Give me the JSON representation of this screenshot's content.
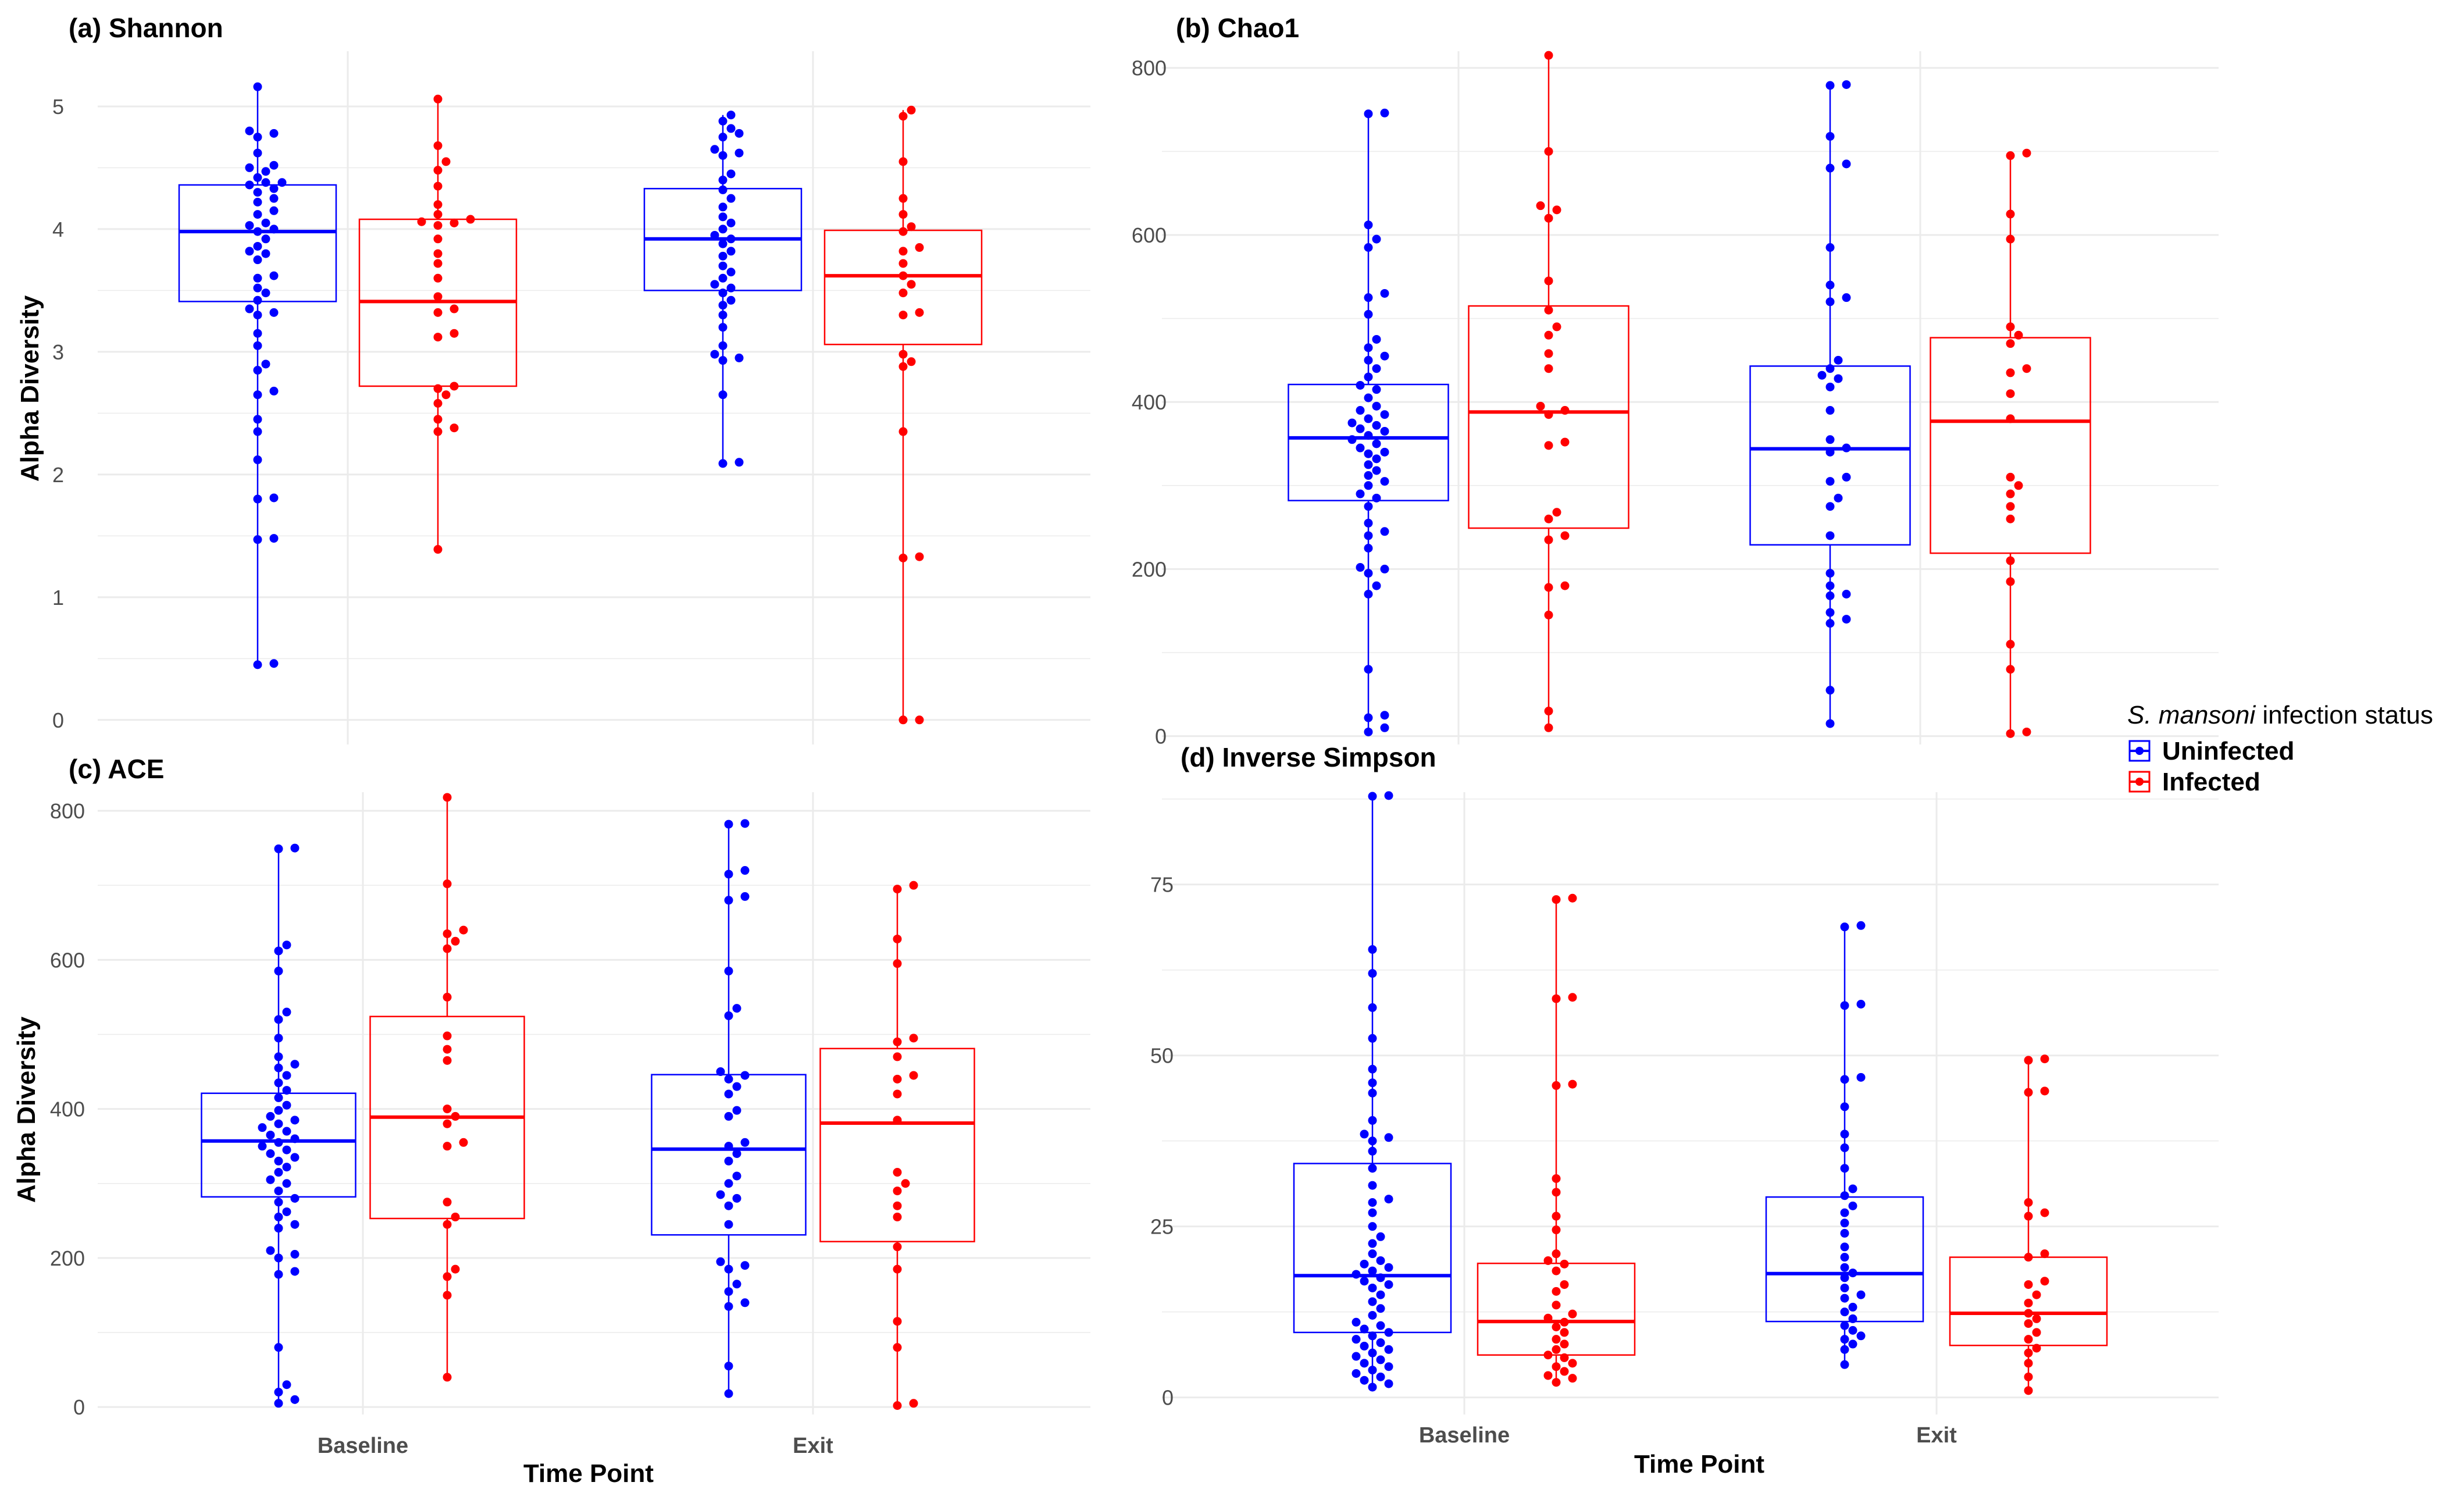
{
  "colors": {
    "uninfected": "#0000ff",
    "infected": "#ff0000",
    "grid": "#ebebeb"
  },
  "legend": {
    "title_italic": "S. mansoni",
    "title_rest": " infection status",
    "items": [
      {
        "label": "Uninfected",
        "color": "#0000ff"
      },
      {
        "label": "Infected",
        "color": "#ff0000"
      }
    ]
  },
  "chart_data": [
    {
      "type": "box",
      "title": "(a) Shannon",
      "ylabel": "Alpha Diversity",
      "xlabel": "",
      "categories": [
        "Baseline",
        "Exit"
      ],
      "show_x_ticks": false,
      "ylim": [
        -0.2,
        5.45
      ],
      "yticks": [
        0,
        1,
        2,
        3,
        4,
        5
      ],
      "yminor": [
        0.5,
        1.5,
        2.5,
        3.5,
        4.5
      ],
      "groups": [
        {
          "category": "Baseline",
          "status": "Uninfected",
          "q1": 3.41,
          "median": 3.98,
          "q3": 4.36,
          "wlo": 0.45,
          "whi": 5.16,
          "points": [
            5.16,
            4.8,
            4.78,
            4.75,
            4.62,
            4.52,
            4.5,
            4.47,
            4.42,
            4.38,
            4.38,
            4.36,
            4.33,
            4.3,
            4.25,
            4.22,
            4.15,
            4.12,
            4.05,
            4.03,
            4.0,
            3.98,
            3.92,
            3.86,
            3.82,
            3.8,
            3.75,
            3.62,
            3.6,
            3.52,
            3.48,
            3.42,
            3.35,
            3.32,
            3.3,
            3.15,
            3.05,
            2.9,
            2.85,
            2.68,
            2.65,
            2.45,
            2.35,
            2.12,
            1.81,
            1.8,
            1.48,
            1.47,
            0.46,
            0.45
          ]
        },
        {
          "category": "Baseline",
          "status": "Infected",
          "q1": 2.72,
          "median": 3.41,
          "q3": 4.08,
          "wlo": 1.39,
          "whi": 5.06,
          "points": [
            5.06,
            4.68,
            4.55,
            4.48,
            4.35,
            4.2,
            4.12,
            4.08,
            4.06,
            4.05,
            4.03,
            3.92,
            3.8,
            3.72,
            3.6,
            3.45,
            3.35,
            3.32,
            3.15,
            3.12,
            2.72,
            2.7,
            2.65,
            2.58,
            2.45,
            2.38,
            2.35,
            1.39
          ]
        },
        {
          "category": "Exit",
          "status": "Uninfected",
          "q1": 3.5,
          "median": 3.92,
          "q3": 4.33,
          "wlo": 2.1,
          "whi": 4.93,
          "points": [
            4.93,
            4.88,
            4.82,
            4.78,
            4.75,
            4.65,
            4.62,
            4.6,
            4.45,
            4.4,
            4.32,
            4.25,
            4.18,
            4.1,
            4.05,
            4.0,
            3.95,
            3.92,
            3.88,
            3.82,
            3.78,
            3.7,
            3.65,
            3.6,
            3.55,
            3.52,
            3.48,
            3.42,
            3.38,
            3.3,
            3.2,
            3.05,
            2.98,
            2.95,
            2.93,
            2.65,
            2.1,
            2.09
          ]
        },
        {
          "category": "Exit",
          "status": "Infected",
          "q1": 3.06,
          "median": 3.62,
          "q3": 3.99,
          "wlo": 0.0,
          "whi": 4.97,
          "points": [
            4.97,
            4.92,
            4.55,
            4.25,
            4.12,
            4.02,
            3.98,
            3.85,
            3.82,
            3.72,
            3.62,
            3.55,
            3.48,
            3.32,
            3.3,
            2.98,
            2.92,
            2.88,
            2.35,
            1.33,
            1.32,
            0.0,
            0.0
          ]
        }
      ]
    },
    {
      "type": "box",
      "title": "(b) Chao1",
      "ylabel": "",
      "xlabel": "",
      "categories": [
        "Baseline",
        "Exit"
      ],
      "show_x_ticks": false,
      "ylim": [
        -10,
        820
      ],
      "yticks": [
        0,
        200,
        400,
        600,
        800
      ],
      "yminor": [
        100,
        300,
        500,
        700
      ],
      "groups": [
        {
          "category": "Baseline",
          "status": "Uninfected",
          "q1": 282,
          "median": 357,
          "q3": 421,
          "wlo": 5,
          "whi": 746,
          "points": [
            746,
            745,
            612,
            595,
            585,
            530,
            525,
            505,
            475,
            465,
            455,
            450,
            440,
            430,
            420,
            415,
            405,
            395,
            390,
            385,
            380,
            375,
            372,
            368,
            365,
            360,
            355,
            350,
            345,
            340,
            338,
            332,
            325,
            318,
            312,
            305,
            300,
            290,
            285,
            275,
            255,
            245,
            240,
            225,
            202,
            200,
            195,
            180,
            170,
            80,
            25,
            22,
            10,
            5
          ]
        },
        {
          "category": "Baseline",
          "status": "Infected",
          "q1": 249,
          "median": 388,
          "q3": 515,
          "wlo": 10,
          "whi": 815,
          "points": [
            815,
            700,
            635,
            630,
            620,
            545,
            510,
            490,
            480,
            458,
            440,
            395,
            390,
            385,
            352,
            348,
            268,
            260,
            240,
            235,
            180,
            178,
            145,
            30,
            10
          ]
        },
        {
          "category": "Exit",
          "status": "Uninfected",
          "q1": 229,
          "median": 344,
          "q3": 443,
          "wlo": 15,
          "whi": 780,
          "points": [
            780,
            779,
            718,
            685,
            680,
            585,
            540,
            525,
            520,
            450,
            440,
            432,
            428,
            418,
            390,
            355,
            345,
            340,
            310,
            305,
            285,
            275,
            240,
            195,
            180,
            170,
            168,
            148,
            140,
            135,
            55,
            15
          ]
        },
        {
          "category": "Exit",
          "status": "Infected",
          "q1": 219,
          "median": 377,
          "q3": 477,
          "wlo": 0,
          "whi": 698,
          "points": [
            698,
            695,
            625,
            595,
            490,
            480,
            470,
            440,
            435,
            410,
            380,
            310,
            300,
            290,
            275,
            260,
            210,
            185,
            110,
            80,
            5,
            3
          ]
        }
      ]
    },
    {
      "type": "box",
      "title": "(c) ACE",
      "ylabel": "Alpha Diversity",
      "xlabel": "Time Point",
      "categories": [
        "Baseline",
        "Exit"
      ],
      "show_x_ticks": true,
      "ylim": [
        -10,
        825
      ],
      "yticks": [
        0,
        200,
        400,
        600,
        800
      ],
      "yminor": [
        100,
        300,
        500,
        700
      ],
      "groups": [
        {
          "category": "Baseline",
          "status": "Uninfected",
          "q1": 282,
          "median": 357,
          "q3": 421,
          "wlo": 5,
          "whi": 750,
          "points": [
            750,
            749,
            620,
            612,
            585,
            530,
            520,
            495,
            470,
            460,
            455,
            445,
            435,
            425,
            415,
            405,
            398,
            390,
            385,
            380,
            375,
            370,
            365,
            360,
            355,
            350,
            345,
            340,
            335,
            330,
            322,
            315,
            305,
            300,
            290,
            280,
            275,
            262,
            255,
            245,
            240,
            210,
            205,
            200,
            182,
            178,
            80,
            30,
            20,
            10,
            5
          ]
        },
        {
          "category": "Baseline",
          "status": "Infected",
          "q1": 253,
          "median": 389,
          "q3": 524,
          "wlo": 40,
          "whi": 818,
          "points": [
            818,
            702,
            640,
            635,
            625,
            615,
            550,
            498,
            480,
            465,
            400,
            390,
            380,
            355,
            350,
            275,
            255,
            245,
            185,
            175,
            150,
            40
          ]
        },
        {
          "category": "Exit",
          "status": "Uninfected",
          "q1": 231,
          "median": 346,
          "q3": 446,
          "wlo": 18,
          "whi": 783,
          "points": [
            783,
            782,
            720,
            715,
            685,
            680,
            585,
            535,
            525,
            450,
            445,
            440,
            430,
            420,
            398,
            390,
            355,
            350,
            340,
            330,
            310,
            300,
            285,
            280,
            270,
            245,
            195,
            190,
            185,
            165,
            155,
            140,
            135,
            55,
            18
          ]
        },
        {
          "category": "Exit",
          "status": "Infected",
          "q1": 222,
          "median": 381,
          "q3": 481,
          "wlo": 2,
          "whi": 700,
          "points": [
            700,
            695,
            628,
            595,
            495,
            490,
            470,
            445,
            440,
            420,
            385,
            315,
            300,
            290,
            270,
            255,
            215,
            185,
            115,
            80,
            5,
            2
          ]
        }
      ]
    },
    {
      "type": "box",
      "title": "(d) Inverse Simpson",
      "ylabel": "",
      "xlabel": "Time Point",
      "categories": [
        "Baseline",
        "Exit"
      ],
      "show_x_ticks": true,
      "ylim": [
        -2.5,
        88.5
      ],
      "yticks": [
        0,
        25,
        50,
        75
      ],
      "yminor": [
        12.5,
        37.5,
        62.5,
        87.5
      ],
      "groups": [
        {
          "category": "Baseline",
          "status": "Uninfected",
          "q1": 9.5,
          "median": 17.8,
          "q3": 34.2,
          "wlo": 1.5,
          "whi": 88,
          "points": [
            88,
            87.9,
            65.5,
            62,
            57,
            52.5,
            48,
            46,
            44.5,
            40.5,
            38.5,
            38,
            37.5,
            36,
            33.5,
            31,
            29,
            28.5,
            27,
            25,
            23.5,
            22.5,
            21,
            20,
            19.5,
            19,
            18.5,
            18,
            17.5,
            17,
            16.5,
            16,
            15,
            14,
            13,
            12,
            11,
            10.5,
            10,
            9.5,
            9,
            8.5,
            8,
            7.5,
            7,
            6.5,
            6,
            5.5,
            5,
            4.5,
            4,
            3.5,
            3,
            2.5,
            2,
            1.5
          ]
        },
        {
          "category": "Baseline",
          "status": "Infected",
          "q1": 6.2,
          "median": 11.1,
          "q3": 19.6,
          "wlo": 2.2,
          "whi": 73,
          "points": [
            73,
            72.8,
            58.5,
            58.3,
            45.8,
            45.6,
            32,
            30,
            26.5,
            24.5,
            21,
            20,
            19.5,
            18.5,
            16.5,
            15.5,
            13.5,
            12.2,
            11.6,
            11,
            10.3,
            9.5,
            8.5,
            7.8,
            7,
            6.2,
            5.8,
            5,
            4.5,
            3.8,
            3.2,
            2.8,
            2.2
          ]
        },
        {
          "category": "Exit",
          "status": "Uninfected",
          "q1": 11.1,
          "median": 18.1,
          "q3": 29.3,
          "wlo": 4.8,
          "whi": 69,
          "points": [
            69,
            68.8,
            57.5,
            57.3,
            46.8,
            46.5,
            42.5,
            38.5,
            36.5,
            33.5,
            30.5,
            29.5,
            28,
            27,
            25.5,
            24,
            22,
            20.5,
            19,
            18.2,
            17.5,
            16,
            15,
            14.5,
            13.2,
            12.5,
            11.5,
            10.5,
            9.8,
            9,
            8.5,
            7.8,
            7,
            4.8
          ]
        },
        {
          "category": "Exit",
          "status": "Infected",
          "q1": 7.6,
          "median": 12.3,
          "q3": 20.5,
          "wlo": 1,
          "whi": 49.5,
          "points": [
            49.5,
            49.3,
            44.8,
            44.6,
            28.5,
            27,
            26.5,
            21,
            20.5,
            17,
            16.5,
            15,
            13.8,
            12.3,
            11.5,
            10.8,
            9.5,
            8.5,
            7.2,
            6.5,
            5,
            3,
            1
          ]
        }
      ]
    }
  ]
}
